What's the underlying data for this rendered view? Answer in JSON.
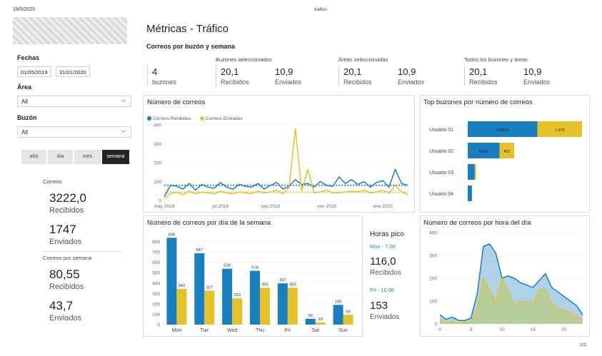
{
  "header": {
    "date": "19/5/2020",
    "report_name": "trafico",
    "page_number": "1/1"
  },
  "title": "Métricas - Tráfico",
  "colors": {
    "received": "#1a7fc1",
    "sent": "#e6c22a"
  },
  "filters": {
    "fechas_label": "Fechas",
    "date_from": "01/05/2019",
    "date_to": "31/01/2020",
    "area_label": "Área",
    "area_value": "All",
    "buzon_label": "Buzón",
    "buzon_value": "All",
    "granularity": [
      "año",
      "día",
      "mes",
      "semana"
    ],
    "granularity_active": "semana"
  },
  "totals": {
    "correos_label": "Correos",
    "recibidos_value": "3222,0",
    "recibidos_label": "Recibidos",
    "enviados_value": "1747",
    "enviados_label": "Enviados",
    "semana_label": "Correos por semana",
    "semana_recibidos_value": "80,55",
    "semana_recibidos_label": "Recibidos",
    "semana_enviados_value": "43,7",
    "semana_enviados_label": "Enviados"
  },
  "summary": {
    "section_title": "Correos por buzón y semana",
    "buzones_count": "4",
    "buzones_label": "buzones",
    "groups": [
      {
        "title": "Buzones seleccionados",
        "recibidos": "20,1",
        "recibidos_label": "Recibidos",
        "enviados": "10,9",
        "enviados_label": "Enviados"
      },
      {
        "title": "Áreas seleccionadas",
        "recibidos": "20,1",
        "recibidos_label": "Recibidos",
        "enviados": "10,9",
        "enviados_label": "Enviados"
      },
      {
        "title": "Todos los buzones y áreas",
        "recibidos": "20,1",
        "recibidos_label": "Recibidos",
        "enviados": "10,9",
        "enviados_label": "Enviados"
      }
    ]
  },
  "peak": {
    "title": "Horas pico",
    "first_slot": "Mon - 7.00",
    "first_value": "116,0",
    "first_label": "Recibidos",
    "second_slot": "Fri - 10.00",
    "second_value": "153",
    "second_label": "Enviados"
  },
  "chart_data": [
    {
      "id": "weekly",
      "type": "line",
      "title": "Número de correos",
      "legend": [
        "Correos Recibidos",
        "Correos Enviados"
      ],
      "x_tick_labels": [
        "may 2019",
        "jul 2019",
        "sep 2019",
        "nov 2019",
        "ene 2020"
      ],
      "x_tick_positions": [
        0,
        9,
        17,
        26,
        35
      ],
      "ylim": [
        0,
        400
      ],
      "yticks": [
        0,
        100,
        200,
        300,
        400
      ],
      "grid": true,
      "series": [
        {
          "name": "Correos Recibidos",
          "values": [
            20,
            80,
            75,
            60,
            90,
            55,
            85,
            70,
            65,
            95,
            70,
            60,
            85,
            75,
            70,
            90,
            60,
            80,
            95,
            60,
            75,
            110,
            85,
            90,
            70,
            100,
            80,
            75,
            125,
            90,
            110,
            85,
            100,
            70,
            95,
            105,
            70,
            165,
            90,
            80
          ],
          "average": 80.55
        },
        {
          "name": "Correos Enviados",
          "values": [
            10,
            35,
            45,
            30,
            50,
            35,
            45,
            40,
            35,
            50,
            40,
            35,
            45,
            40,
            35,
            50,
            40,
            45,
            55,
            35,
            70,
            380,
            50,
            165,
            40,
            45,
            55,
            40,
            40,
            45,
            50,
            45,
            55,
            40,
            45,
            55,
            40,
            80,
            45,
            30
          ],
          "average": 43.7
        }
      ]
    },
    {
      "id": "top_buzones",
      "type": "bar",
      "orientation": "horizontal",
      "stacked": true,
      "title": "Top buzones por número de correos",
      "categories": [
        "Usuario 01",
        "Usuario 02",
        "Usuario 03",
        "Usuario 04"
      ],
      "series": [
        {
          "name": "Recibidos",
          "values": [
            1990,
            909,
            200,
            120
          ],
          "labels": [
            "1.990,0",
            "909,0",
            "",
            ""
          ]
        },
        {
          "name": "Enviados",
          "values": [
            1276,
            421,
            40,
            0
          ],
          "labels": [
            "1.276",
            "421",
            "",
            ""
          ]
        }
      ]
    },
    {
      "id": "weekday",
      "type": "bar",
      "title": "Número de correos por día de la semana",
      "categories": [
        "Mon",
        "Tue",
        "Wed",
        "Thu",
        "Fri",
        "Sat",
        "Sun"
      ],
      "ylim": [
        0,
        900
      ],
      "yticks": [
        0,
        100,
        200,
        300,
        400,
        500,
        600,
        700,
        800
      ],
      "grid": true,
      "series": [
        {
          "name": "Recibidos",
          "values": [
            836,
            687,
            538,
            518,
            397,
            56,
            190
          ]
        },
        {
          "name": "Enviados",
          "values": [
            343,
            327,
            253,
            355,
            355,
            20,
            94
          ]
        }
      ]
    },
    {
      "id": "hourly",
      "type": "area",
      "title": "Número de correos por hora del día",
      "xlim": [
        0,
        23
      ],
      "xticks": [
        0,
        5,
        10,
        15,
        20
      ],
      "ylim": [
        0,
        400
      ],
      "yticks": [
        0,
        100,
        200,
        300,
        400
      ],
      "grid": true,
      "series": [
        {
          "name": "Recibidos",
          "x": [
            0,
            1,
            2,
            3,
            4,
            5,
            6,
            7,
            8,
            9,
            10,
            11,
            12,
            13,
            14,
            15,
            16,
            17,
            18,
            19,
            20,
            21,
            22,
            23
          ],
          "values": [
            40,
            20,
            30,
            15,
            15,
            25,
            130,
            340,
            350,
            310,
            200,
            210,
            200,
            180,
            170,
            160,
            190,
            220,
            160,
            140,
            120,
            100,
            80,
            40
          ]
        },
        {
          "name": "Enviados",
          "x": [
            0,
            1,
            2,
            3,
            4,
            5,
            6,
            7,
            8,
            9,
            10,
            11,
            12,
            13,
            14,
            15,
            16,
            17,
            18,
            19,
            20,
            21,
            22,
            23
          ],
          "values": [
            20,
            5,
            10,
            5,
            5,
            10,
            60,
            200,
            150,
            90,
            200,
            140,
            80,
            100,
            100,
            90,
            150,
            150,
            90,
            70,
            60,
            50,
            30,
            20
          ]
        }
      ]
    }
  ]
}
